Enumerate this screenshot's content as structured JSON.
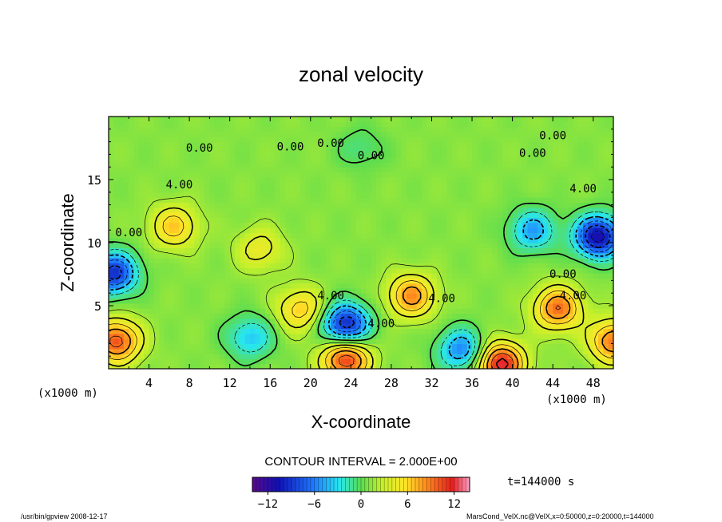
{
  "chart_data": {
    "type": "heatmap",
    "title": "zonal velocity",
    "xlabel": "X-coordinate",
    "ylabel": "Z-coordinate",
    "x_unit": "(x1000 m)",
    "y_unit": "(x1000 m)",
    "xlim": [
      0,
      50
    ],
    "ylim": [
      0,
      20
    ],
    "x_ticks": [
      "4",
      "8",
      "12",
      "16",
      "20",
      "24",
      "28",
      "32",
      "36",
      "40",
      "44",
      "48"
    ],
    "y_ticks": [
      "5",
      "10",
      "15"
    ],
    "contour_interval_text": "CONTOUR INTERVAL = 2.000E+00",
    "time_text": "t=144000 s",
    "colorbar_ticks": [
      "−12",
      "−6",
      "0",
      "6",
      "12"
    ],
    "colorbar_range": [
      -14,
      14
    ],
    "contour_labels": [
      {
        "text": "0.00",
        "x": 18,
        "y": 17.3
      },
      {
        "text": "0.00",
        "x": 9,
        "y": 17.2
      },
      {
        "text": "0.00",
        "x": 22,
        "y": 17.6
      },
      {
        "text": "0.00",
        "x": 26,
        "y": 16.6
      },
      {
        "text": "0.00",
        "x": 42,
        "y": 16.8
      },
      {
        "text": "0.00",
        "x": 44,
        "y": 18.2
      },
      {
        "text": "4.00",
        "x": 7,
        "y": 14.3
      },
      {
        "text": "4.00",
        "x": 47,
        "y": 14.0
      },
      {
        "text": "4.00",
        "x": 22,
        "y": 5.5
      },
      {
        "text": "4.00",
        "x": 33,
        "y": 5.3
      },
      {
        "text": "4.00",
        "x": 27,
        "y": 3.3
      },
      {
        "text": "0.00",
        "x": 45,
        "y": 7.2
      },
      {
        "text": "0.00",
        "x": 2,
        "y": 10.5
      },
      {
        "text": "4.00",
        "x": 46,
        "y": 5.5
      }
    ],
    "field_features": [
      {
        "x": 6.5,
        "y": 11.3,
        "value": 7
      },
      {
        "x": 15,
        "y": 9.5,
        "value": 5
      },
      {
        "x": 19,
        "y": 4.7,
        "value": 7
      },
      {
        "x": 30,
        "y": 5.8,
        "value": 9
      },
      {
        "x": 44.5,
        "y": 4.8,
        "value": 10
      },
      {
        "x": 0.8,
        "y": 2.2,
        "value": 11
      },
      {
        "x": 23.5,
        "y": 3.5,
        "value": -10
      },
      {
        "x": 23.5,
        "y": 0.8,
        "value": 12
      },
      {
        "x": 48.5,
        "y": 10.5,
        "value": -11
      },
      {
        "x": 42,
        "y": 11,
        "value": -5
      },
      {
        "x": 0.5,
        "y": 7.6,
        "value": -9
      },
      {
        "x": 35,
        "y": 1.5,
        "value": -6
      },
      {
        "x": 14,
        "y": 2.5,
        "value": -4
      },
      {
        "x": 38.8,
        "y": 0.4,
        "value": 13
      },
      {
        "x": 50,
        "y": 2.2,
        "value": 10
      },
      {
        "x": 25,
        "y": 17.5,
        "value": -1
      }
    ]
  },
  "footer": {
    "left": "/usr/bin/gpview  2008-12-17",
    "right": "MarsCond_VelX.nc@VelX,x=0:50000,z=0:20000,t=144000"
  }
}
